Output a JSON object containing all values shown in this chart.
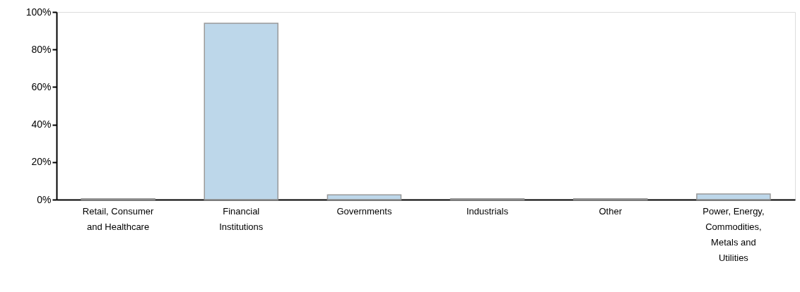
{
  "chart_data": {
    "type": "bar",
    "categories": [
      "Retail, Consumer and Healthcare",
      "Financial Institutions",
      "Governments",
      "Industrials",
      "Other",
      "Power, Energy, Commodities, Metals and Utilities"
    ],
    "values": [
      0.5,
      94,
      2.5,
      0.5,
      0.5,
      3
    ],
    "color": "#bdd7ea",
    "ylim": [
      0,
      100
    ],
    "yticks": [
      {
        "value": 0,
        "label": "0%"
      },
      {
        "value": 20,
        "label": "20%"
      },
      {
        "value": 40,
        "label": "40%"
      },
      {
        "value": 60,
        "label": "60%"
      },
      {
        "value": 80,
        "label": "80%"
      },
      {
        "value": 100,
        "label": "100%"
      }
    ],
    "grid": false
  }
}
